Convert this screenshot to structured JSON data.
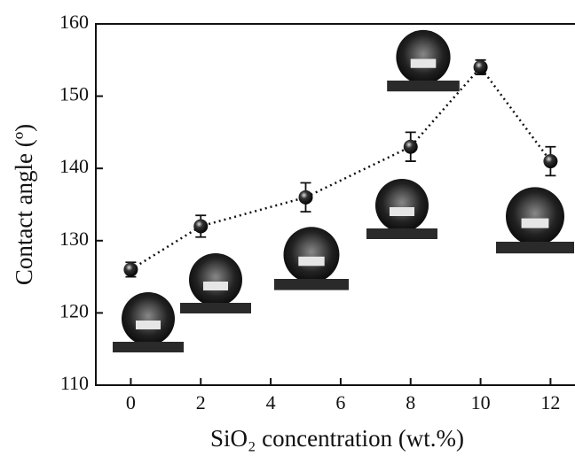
{
  "chart_data": {
    "type": "line",
    "xlabel": "SiO₂ concentration (wt.%)",
    "ylabel": "Contact angle (º)",
    "x": [
      0,
      2,
      5,
      8,
      10,
      12
    ],
    "series": [
      {
        "color": "#111111",
        "values": [
          126,
          132,
          136,
          143,
          154,
          141
        ],
        "errors": [
          1,
          1.5,
          2,
          2,
          1,
          2
        ]
      }
    ],
    "xlim": [
      -1,
      12.7
    ],
    "xticks": [
      0,
      2,
      4,
      6,
      8,
      10,
      12
    ],
    "ylim": [
      110,
      160
    ],
    "yticks": [
      110,
      120,
      130,
      140,
      150,
      160
    ]
  }
}
